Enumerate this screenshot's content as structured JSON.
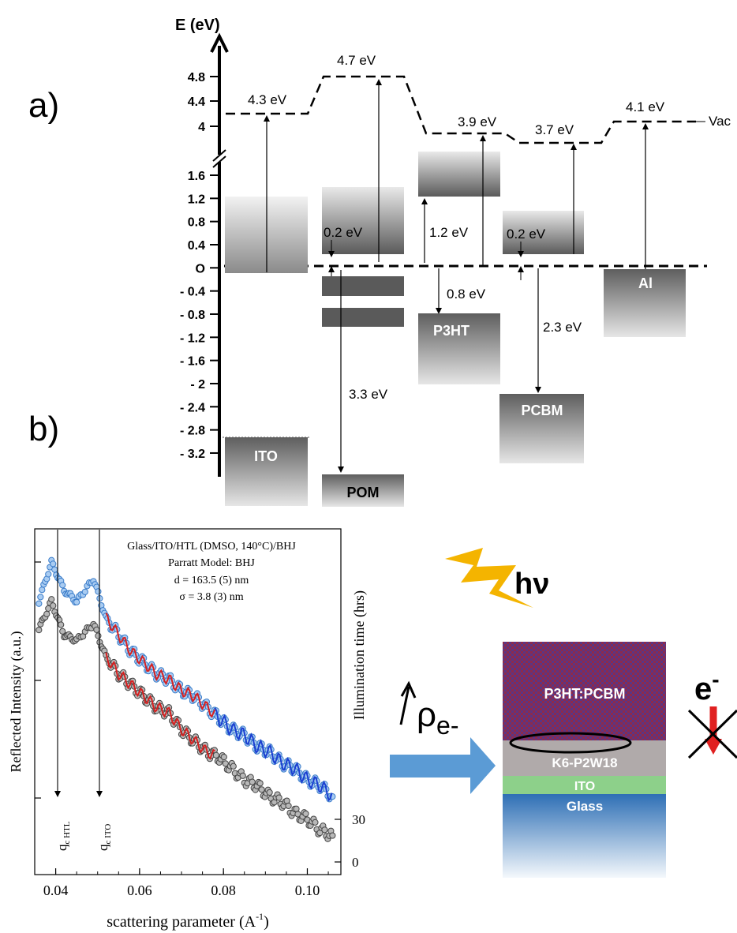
{
  "panel_a": {
    "label": "a)",
    "axis_title": "E (eV)",
    "ticks_upper": [
      "4.8",
      "4.4",
      "4"
    ],
    "ticks_lower": [
      "1.6",
      "1.2",
      "0.8",
      "0.4",
      "O",
      "- 0.4",
      "- 0.8",
      "- 1.2",
      "- 1.6",
      "- 2",
      "- 2.4",
      "- 2.8",
      "- 3.2"
    ],
    "vacuum_levels": [
      "4.3 eV",
      "4.7 eV",
      "3.9 eV",
      "3.7 eV",
      "4.1 eV"
    ],
    "vac_label": "Vac",
    "gaps": {
      "pom_upper": "0.2 eV",
      "pom_band": "3.3 eV",
      "p3ht_lumo": "1.2 eV",
      "p3ht_homo": "0.8 eV",
      "pcbm_lumo": "0.2 eV",
      "pcbm_homo": "2.3 eV"
    },
    "materials": [
      "ITO",
      "POM",
      "P3HT",
      "PCBM",
      "Al"
    ]
  },
  "panel_b": {
    "label": "b)",
    "annotation": [
      "Glass/ITO/HTL (DMSO, 140°C)/BHJ",
      "Parratt Model: BHJ",
      "d = 163.5 (5) nm",
      "σ = 3.8 (3) nm"
    ],
    "ylabel_left": "Reflected Intensity (a.u.)",
    "ylabel_right": "Illumination time (hrs)",
    "xlabel": "scattering parameter (A",
    "xlabel_sup": "-1",
    "xticks": [
      "0.04",
      "0.06",
      "0.08",
      "0.10"
    ],
    "right_ticks": [
      "30",
      "0"
    ],
    "qc_htl_base": "q",
    "qc_htl_sub": "c HTL",
    "qc_ito_base": "q",
    "qc_ito_sub": "c ITO"
  },
  "device": {
    "hv": "hν",
    "rho_main": "ρ",
    "rho_sub": "e-",
    "electron": "e",
    "electron_sup": "-",
    "layers": [
      "P3HT:PCBM",
      "K6-P2W18",
      "ITO",
      "Glass"
    ]
  },
  "chart_data": {
    "type": "scatter",
    "xlabel": "scattering parameter (A-1)",
    "ylabel": "Reflected Intensity (a.u.)",
    "xlim": [
      0.035,
      0.108
    ],
    "y2label": "Illumination time (hrs)",
    "y2_ticks": [
      30,
      0
    ],
    "series": [
      {
        "name": "30",
        "color": "#4a90d9",
        "x": [
          0.036,
          0.039,
          0.042,
          0.045,
          0.049,
          0.052,
          0.055,
          0.058,
          0.061,
          0.064,
          0.067,
          0.07,
          0.073,
          0.076,
          0.079,
          0.082,
          0.085,
          0.088,
          0.091,
          0.094,
          0.097,
          0.1,
          0.103,
          0.106
        ],
        "y": [
          10.2,
          10.9,
          10.4,
          10.2,
          10.6,
          9.9,
          9.6,
          9.3,
          9.1,
          8.9,
          8.8,
          8.6,
          8.5,
          8.3,
          8.1,
          7.9,
          7.8,
          7.6,
          7.5,
          7.3,
          7.2,
          7.0,
          6.9,
          6.7
        ]
      },
      {
        "name": "0",
        "color": "#666666",
        "x": [
          0.036,
          0.039,
          0.042,
          0.045,
          0.049,
          0.052,
          0.055,
          0.058,
          0.061,
          0.064,
          0.067,
          0.07,
          0.073,
          0.076,
          0.079,
          0.082,
          0.085,
          0.088,
          0.091,
          0.094,
          0.097,
          0.1,
          0.103,
          0.106
        ],
        "y": [
          9.7,
          10.2,
          9.6,
          9.5,
          9.8,
          9.2,
          8.9,
          8.7,
          8.5,
          8.3,
          8.2,
          7.9,
          7.7,
          7.5,
          7.4,
          7.2,
          7.0,
          6.9,
          6.7,
          6.6,
          6.4,
          6.3,
          6.1,
          6.0
        ]
      }
    ],
    "markers": [
      {
        "name": "q_c HTL",
        "x": 0.0395
      },
      {
        "name": "q_c ITO",
        "x": 0.0495
      }
    ]
  },
  "colors": {
    "blue_data": "#4a90d9",
    "gray_data": "#666666",
    "fit_red": "#d62020",
    "fit_blue": "#1a3fd1",
    "p3ht_pcbm": "#7d2a52",
    "k6": "#b0aaaa",
    "ito_green": "#8dd08a",
    "glass_blue": "#2e6fb5",
    "bolt": "#f4b400",
    "arrow_blue": "#5b9bd5"
  }
}
